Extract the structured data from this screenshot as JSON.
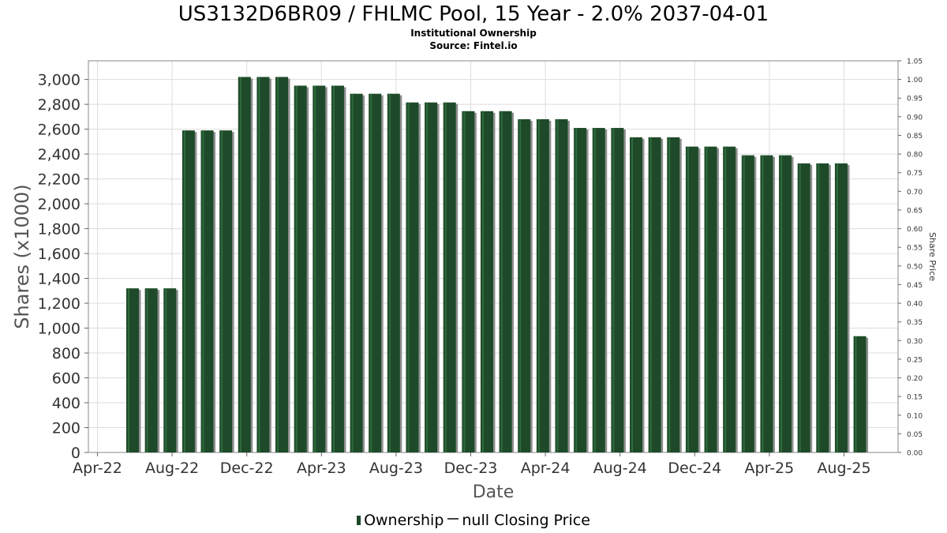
{
  "header": {
    "title": "US3132D6BR09 / FHLMC Pool, 15 Year - 2.0% 2037-04-01",
    "subtitle1": "Institutional Ownership",
    "subtitle2": "Source: Fintel.io"
  },
  "legend": {
    "ownership_label": "Ownership",
    "price_label": "null Closing Price"
  },
  "colors": {
    "bar": "#1e4a2a",
    "bar_highlight": "#2f6b3c",
    "bar_shadow": "#8f8f8f",
    "grid": "#dddddd"
  },
  "chart_data": {
    "type": "bar",
    "title": "US3132D6BR09 / FHLMC Pool, 15 Year - 2.0% 2037-04-01",
    "xlabel": "Date",
    "ylabel": "Shares (x1000)",
    "y2label": "Share Price",
    "ylim": [
      0,
      3150
    ],
    "y2lim": [
      0,
      1.05
    ],
    "yticks": [
      0,
      200,
      400,
      600,
      800,
      1000,
      1200,
      1400,
      1600,
      1800,
      2000,
      2200,
      2400,
      2600,
      2800,
      3000
    ],
    "ytick_labels": [
      "0",
      "200",
      "400",
      "600",
      "800",
      "1,000",
      "1,200",
      "1,400",
      "1,600",
      "1,800",
      "2,000",
      "2,200",
      "2,400",
      "2,600",
      "2,800",
      "3,000"
    ],
    "y2tick_labels": [
      "0.00",
      "0.05",
      "0.10",
      "0.15",
      "0.20",
      "0.25",
      "0.30",
      "0.35",
      "0.40",
      "0.45",
      "0.50",
      "0.55",
      "0.60",
      "0.65",
      "0.70",
      "0.75",
      "0.80",
      "0.85",
      "0.90",
      "0.95",
      "1.00",
      "1.05"
    ],
    "xtick_labels": [
      "Apr-22",
      "Aug-22",
      "Dec-22",
      "Apr-23",
      "Aug-23",
      "Dec-23",
      "Apr-24",
      "Aug-24",
      "Dec-24",
      "Apr-25",
      "Aug-25"
    ],
    "grid": true,
    "legend_position": "bottom",
    "series": [
      {
        "name": "Ownership",
        "values": [
          1320,
          1320,
          1320,
          2590,
          2590,
          2590,
          3020,
          3020,
          3020,
          2950,
          2950,
          2950,
          2885,
          2885,
          2885,
          2815,
          2815,
          2815,
          2745,
          2745,
          2745,
          2680,
          2680,
          2680,
          2610,
          2610,
          2610,
          2535,
          2535,
          2535,
          2460,
          2460,
          2460,
          2390,
          2390,
          2390,
          2325,
          2325,
          2325,
          935
        ]
      }
    ]
  }
}
